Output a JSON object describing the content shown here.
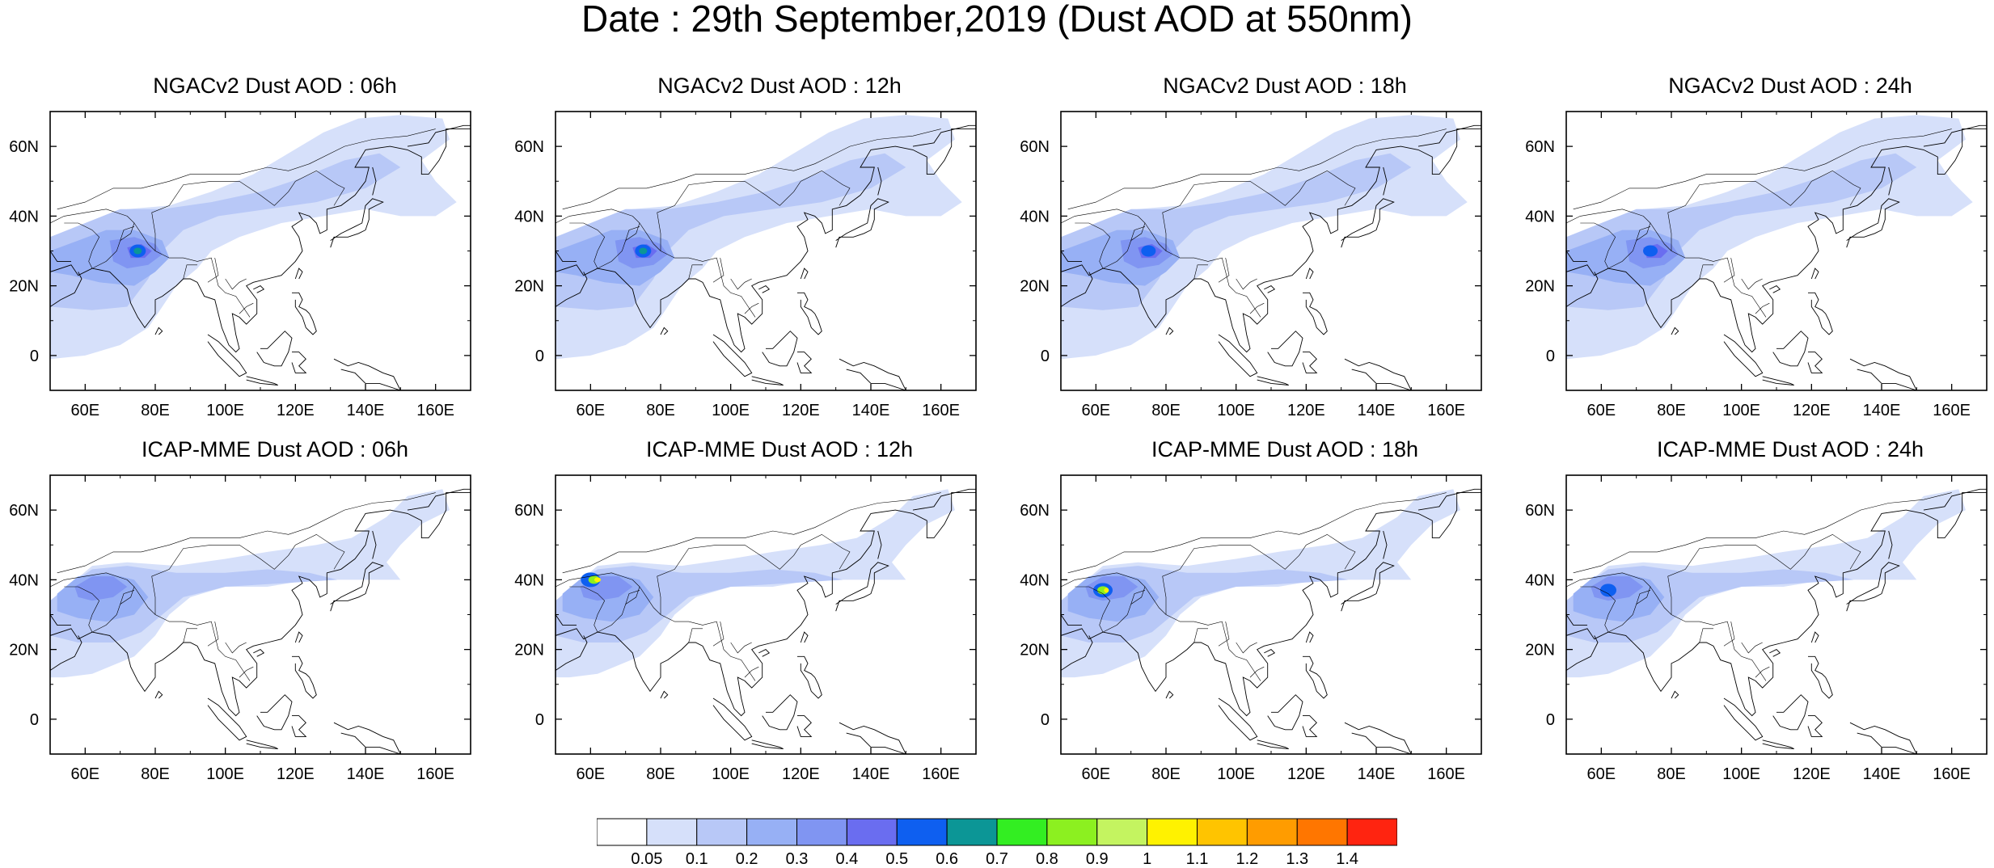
{
  "title": "Date : 29th September,2019 (Dust AOD at 550nm)",
  "axes": {
    "lon_ticks": [
      "60E",
      "80E",
      "100E",
      "120E",
      "140E",
      "160E"
    ],
    "lat_ticks": [
      "60N",
      "40N",
      "20N",
      "0"
    ]
  },
  "panels": [
    {
      "title": "NGACv2 Dust AOD : 06h",
      "model": "ngac"
    },
    {
      "title": "NGACv2 Dust AOD : 12h",
      "model": "ngac"
    },
    {
      "title": "NGACv2 Dust AOD : 18h",
      "model": "ngac"
    },
    {
      "title": "NGACv2 Dust AOD : 24h",
      "model": "ngac"
    },
    {
      "title": "ICAP-MME Dust AOD : 06h",
      "model": "icap"
    },
    {
      "title": "ICAP-MME Dust AOD : 12h",
      "model": "icap"
    },
    {
      "title": "ICAP-MME Dust AOD : 18h",
      "model": "icap"
    },
    {
      "title": "ICAP-MME Dust AOD : 24h",
      "model": "icap"
    }
  ],
  "colorbar": {
    "labels": [
      "0.05",
      "0.1",
      "0.2",
      "0.3",
      "0.4",
      "0.5",
      "0.6",
      "0.7",
      "0.8",
      "0.9",
      "1",
      "1.1",
      "1.2",
      "1.3",
      "1.4"
    ],
    "colors": [
      "#ffffff",
      "#d6e0fa",
      "#b8c8f7",
      "#97b0f5",
      "#8095f2",
      "#6a6df0",
      "#0e5ff0",
      "#0c9696",
      "#33ee22",
      "#8cf020",
      "#c4f460",
      "#fff200",
      "#ffc400",
      "#ff9c00",
      "#ff7600",
      "#ff2410"
    ]
  }
}
